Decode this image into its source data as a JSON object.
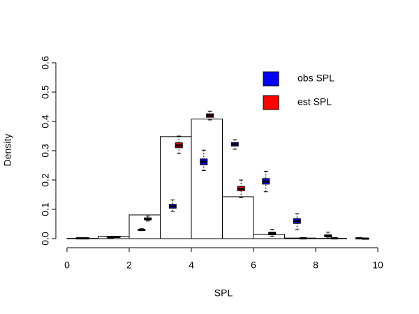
{
  "chart_data": {
    "type": "histogram",
    "x_label": "SPL",
    "y_label": "Density",
    "bins": [
      0,
      1,
      2,
      3,
      4,
      5,
      6,
      7,
      8,
      9,
      10
    ],
    "values": [
      0.001,
      0.008,
      0.081,
      0.348,
      0.408,
      0.143,
      0.014,
      0.002,
      0.001,
      0
    ],
    "bar_color": "#ffffff",
    "series": [
      {
        "name": "obs SPL",
        "color": "#0000ff",
        "min": [
          0,
          0.003,
          0.027,
          0.093,
          0.232,
          0.305,
          0.16,
          0.03,
          0.002,
          0
        ],
        "q1": [
          0,
          0.004,
          0.028,
          0.104,
          0.252,
          0.316,
          0.186,
          0.052,
          0.006,
          0
        ],
        "median": [
          0.001,
          0.005,
          0.03,
          0.11,
          0.262,
          0.322,
          0.195,
          0.06,
          0.01,
          0.001
        ],
        "q3": [
          0.002,
          0.006,
          0.032,
          0.117,
          0.272,
          0.328,
          0.205,
          0.068,
          0.013,
          0.002
        ],
        "max": [
          0.003,
          0.007,
          0.034,
          0.132,
          0.302,
          0.338,
          0.23,
          0.085,
          0.022,
          0.003
        ]
      },
      {
        "name": "est SPL",
        "color": "#ff0000",
        "min": [
          0,
          0.004,
          0.06,
          0.29,
          0.405,
          0.14,
          0.008,
          0,
          0,
          0
        ],
        "q1": [
          0,
          0.005,
          0.064,
          0.31,
          0.414,
          0.163,
          0.013,
          0,
          0,
          0
        ],
        "median": [
          0.001,
          0.006,
          0.068,
          0.318,
          0.42,
          0.17,
          0.018,
          0.001,
          0.001,
          0
        ],
        "q3": [
          0.002,
          0.007,
          0.071,
          0.327,
          0.426,
          0.178,
          0.022,
          0.002,
          0.002,
          0.001
        ],
        "max": [
          0.003,
          0.008,
          0.077,
          0.35,
          0.435,
          0.2,
          0.032,
          0.003,
          0.003,
          0.002
        ]
      }
    ],
    "xlim": [
      0,
      10
    ],
    "xticks": [
      0,
      2,
      4,
      6,
      8,
      10
    ],
    "ylim": [
      0,
      0.6
    ],
    "yticks": [
      {
        "value": 0,
        "label": "0.0"
      },
      0.1,
      0.2,
      0.3,
      0.4,
      0.5,
      0.6
    ],
    "legend": "top-right"
  }
}
